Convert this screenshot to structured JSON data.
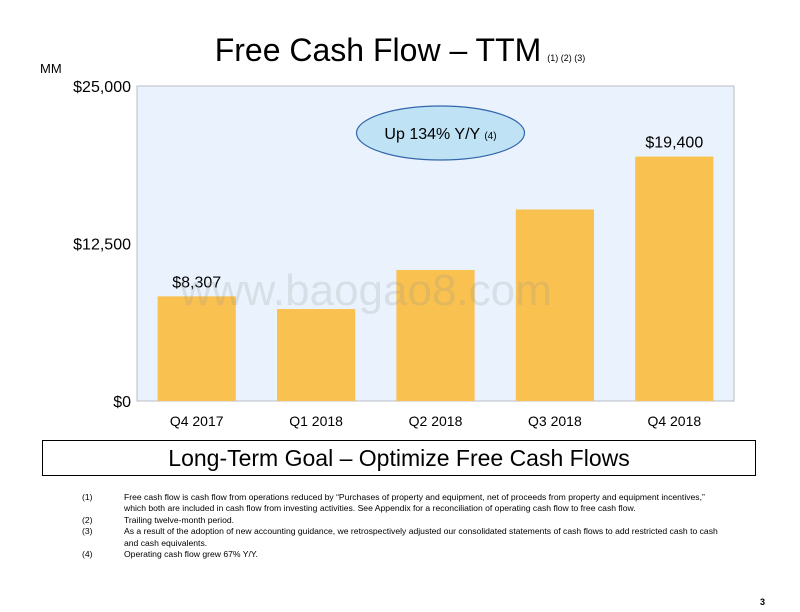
{
  "title": "Free Cash Flow – TTM",
  "title_footnote_refs": "(1) (2) (3)",
  "unit_label": "MM",
  "chart_data": {
    "type": "bar",
    "categories": [
      "Q4 2017",
      "Q1 2018",
      "Q2 2018",
      "Q3 2018",
      "Q4 2018"
    ],
    "values": [
      8307,
      7300,
      10400,
      15200,
      19400
    ],
    "data_labels": [
      {
        "category": "Q4 2017",
        "text": "$8,307"
      },
      {
        "category": "Q4 2018",
        "text": "$19,400"
      }
    ],
    "y_ticks": [
      {
        "value": 0,
        "label": "$0"
      },
      {
        "value": 12500,
        "label": "$12,500"
      },
      {
        "value": 25000,
        "label": "$25,000"
      }
    ],
    "ylim": [
      0,
      25000
    ],
    "xlabel": "",
    "ylabel": "",
    "bar_color": "#f9c14f",
    "plot_background": "#eaf3fd",
    "plot_border": "#b9bec6",
    "grid": false,
    "annotation": {
      "text": "Up 134% Y/Y",
      "ref": "(4)",
      "fill": "#bfe2f5",
      "stroke": "#3366aa"
    }
  },
  "goal_banner": "Long-Term Goal – Optimize Free Cash Flows",
  "footnotes": [
    {
      "num": "(1)",
      "text": "Free cash flow is cash flow from operations reduced by “Purchases of property and equipment, net of proceeds from property and equipment incentives,” which both are included in cash flow from investing activities. See Appendix for a reconciliation of operating cash flow to free cash flow."
    },
    {
      "num": "(2)",
      "text": "Trailing twelve-month period."
    },
    {
      "num": "(3)",
      "text": "As a result of the adoption of new accounting guidance, we retrospectively adjusted our consolidated statements of cash flows to add restricted cash to cash and cash equivalents."
    },
    {
      "num": "(4)",
      "text": "Operating cash flow grew 67% Y/Y."
    }
  ],
  "watermark": "www.baogao8.com",
  "page_number": "3"
}
